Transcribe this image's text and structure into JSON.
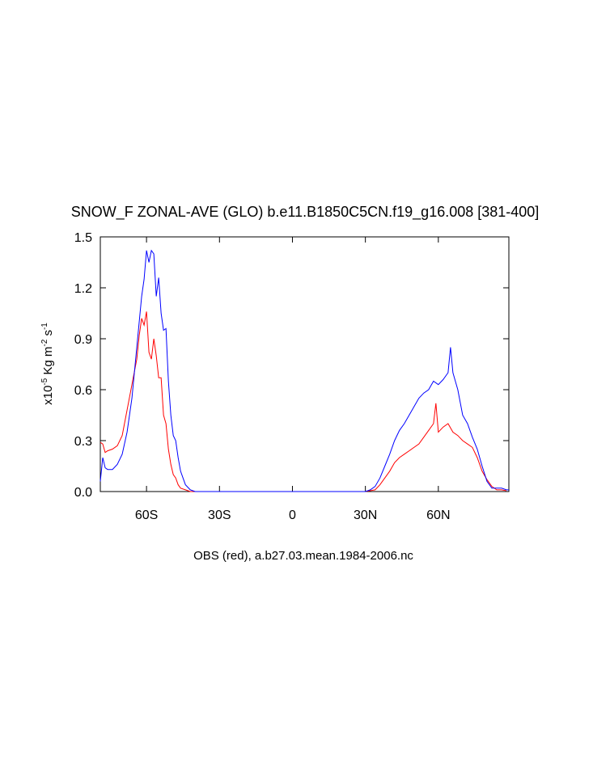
{
  "chart_data": {
    "type": "line",
    "title": "SNOW_F ZONAL-AVE (GLO) b.e11.B1850C5CN.f19_g16.008 [381-400]",
    "xlabel": "OBS (red), a.b27.03.mean.1984-2006.nc",
    "ylabel_parts": [
      "x10",
      "-5",
      " Kg m",
      "-2",
      " s",
      "-1"
    ],
    "xlim": [
      -79,
      89
    ],
    "ylim": [
      0,
      1.5
    ],
    "xticks": [
      {
        "value": -60,
        "label": "60S"
      },
      {
        "value": -30,
        "label": "30S"
      },
      0,
      {
        "value": 30,
        "label": "30N"
      },
      {
        "value": 60,
        "label": "60N"
      }
    ],
    "yticks": [
      {
        "value": 0,
        "label": "0.0"
      },
      0.3,
      0.6,
      0.9,
      1.2,
      1.5
    ],
    "series": [
      {
        "color": "#0000ff",
        "x": [
          -79,
          -78,
          -77,
          -76,
          -74,
          -72,
          -70,
          -68,
          -66,
          -64,
          -62,
          -61,
          -60,
          -59,
          -58,
          -57,
          -56,
          -55,
          -54,
          -53,
          -52,
          -51,
          -50,
          -49,
          -48,
          -47,
          -46,
          -45,
          -44,
          -42,
          -40,
          0,
          30,
          32,
          34,
          36,
          38,
          40,
          42,
          44,
          46,
          48,
          50,
          52,
          54,
          56,
          58,
          60,
          62,
          64,
          65,
          66,
          68,
          70,
          72,
          74,
          76,
          78,
          80,
          82,
          84,
          86,
          88,
          89
        ],
        "values": [
          0.06,
          0.2,
          0.14,
          0.13,
          0.13,
          0.16,
          0.22,
          0.35,
          0.55,
          0.85,
          1.15,
          1.25,
          1.42,
          1.35,
          1.42,
          1.4,
          1.15,
          1.26,
          1.05,
          0.95,
          0.96,
          0.65,
          0.45,
          0.33,
          0.3,
          0.2,
          0.12,
          0.08,
          0.04,
          0.01,
          0,
          0,
          0,
          0.01,
          0.03,
          0.08,
          0.15,
          0.22,
          0.3,
          0.36,
          0.4,
          0.45,
          0.5,
          0.55,
          0.58,
          0.6,
          0.65,
          0.63,
          0.66,
          0.7,
          0.85,
          0.7,
          0.6,
          0.45,
          0.4,
          0.32,
          0.25,
          0.15,
          0.06,
          0.02,
          0.02,
          0.02,
          0.01,
          0.01
        ]
      },
      {
        "color": "#ff0000",
        "x": [
          -79,
          -78,
          -77,
          -76,
          -74,
          -72,
          -70,
          -68,
          -66,
          -64,
          -63,
          -62,
          -61,
          -60,
          -59,
          -58,
          -57,
          -56,
          -55,
          -54,
          -53,
          -52,
          -51,
          -50,
          -49,
          -48,
          -47,
          -46,
          -44,
          -42,
          0,
          30,
          34,
          36,
          38,
          40,
          42,
          44,
          46,
          48,
          50,
          52,
          54,
          56,
          58,
          59,
          60,
          62,
          64,
          66,
          68,
          70,
          72,
          74,
          76,
          78,
          80,
          82,
          84,
          86,
          88
        ],
        "values": [
          0.29,
          0.28,
          0.23,
          0.24,
          0.25,
          0.27,
          0.33,
          0.48,
          0.63,
          0.78,
          0.92,
          1.02,
          0.98,
          1.06,
          0.82,
          0.78,
          0.9,
          0.8,
          0.67,
          0.67,
          0.45,
          0.4,
          0.25,
          0.16,
          0.1,
          0.08,
          0.04,
          0.02,
          0.01,
          0,
          0,
          0,
          0.01,
          0.04,
          0.08,
          0.12,
          0.17,
          0.2,
          0.22,
          0.24,
          0.26,
          0.28,
          0.32,
          0.36,
          0.4,
          0.52,
          0.35,
          0.38,
          0.4,
          0.35,
          0.33,
          0.3,
          0.28,
          0.26,
          0.2,
          0.12,
          0.07,
          0.03,
          0.01,
          0.01,
          0.005
        ]
      }
    ]
  }
}
